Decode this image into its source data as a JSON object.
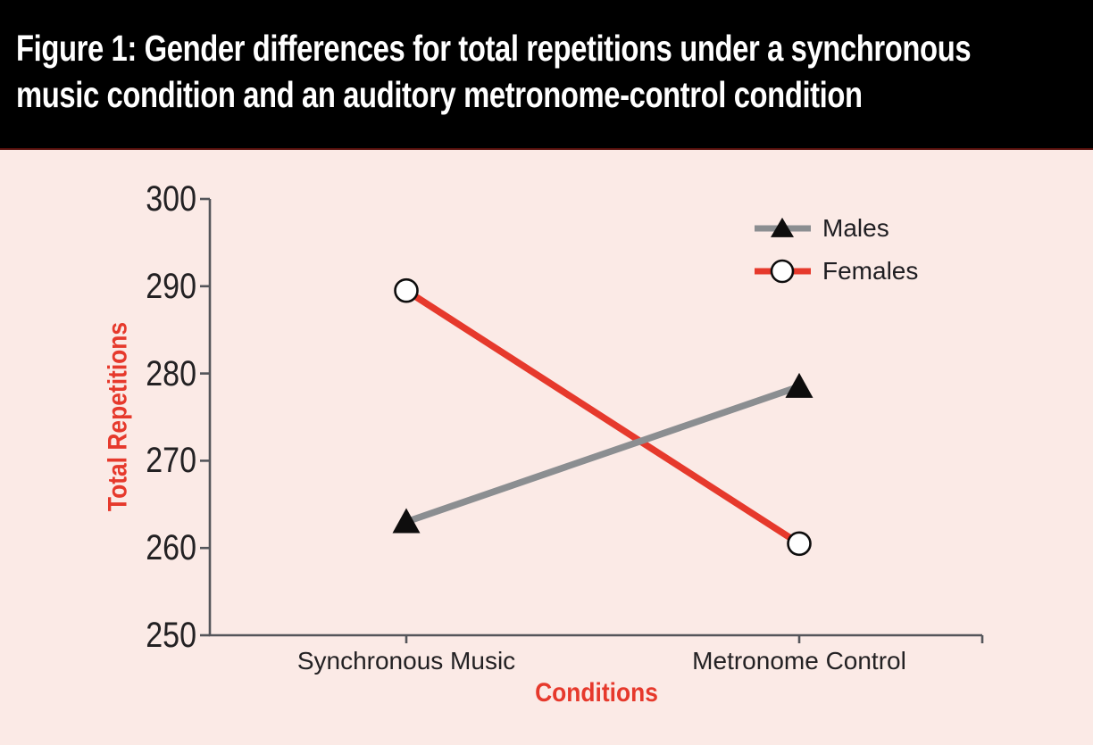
{
  "header": {
    "title_line1": "Figure 1: Gender differences for total repetitions under a synchronous",
    "title_line2": "music condition and an auditory metronome-control condition"
  },
  "colors": {
    "header_bg": "#000000",
    "header_text": "#ffffff",
    "page_bg": "#fbeae6",
    "axis": "#54555a",
    "tick_text": "#232123",
    "accent_red": "#e6392c",
    "males_gray": "#8b8e91",
    "marker_black": "#0e0d0d",
    "marker_white": "#ffffff"
  },
  "chart_data": {
    "type": "line",
    "title": "Figure 1: Gender differences for total repetitions under a synchronous music condition and an auditory metronome-control condition",
    "categories": [
      "Synchronous Music",
      "Metronome Control"
    ],
    "series": [
      {
        "name": "Males",
        "values": [
          263,
          278.5
        ],
        "color": "#8b8e91",
        "marker": "triangle",
        "marker_color": "#0e0d0d"
      },
      {
        "name": "Females",
        "values": [
          289.5,
          260.5
        ],
        "color": "#e6392c",
        "marker": "circle",
        "marker_color": "#ffffff"
      }
    ],
    "xlabel": "Conditions",
    "ylabel": "Total Repetitions",
    "ylim": [
      250,
      300
    ],
    "yticks": [
      300,
      290,
      280,
      270,
      260,
      250
    ],
    "legend_position": "top-right",
    "grid": false
  }
}
